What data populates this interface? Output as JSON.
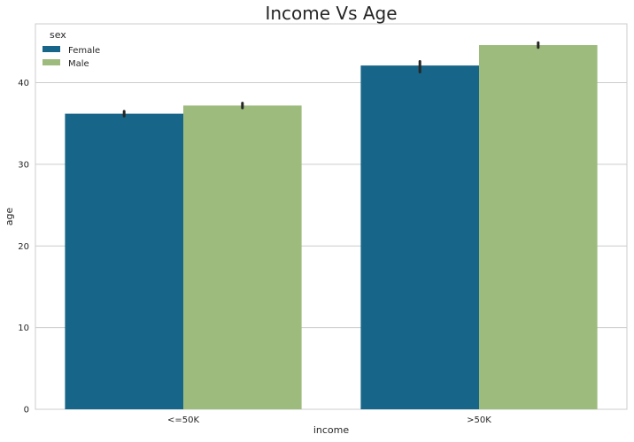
{
  "chart_data": {
    "type": "bar",
    "title": "Income Vs Age",
    "xlabel": "income",
    "ylabel": "age",
    "categories": [
      "<=50K",
      ">50K"
    ],
    "ylim": [
      0,
      47.2
    ],
    "yticks": [
      0,
      10,
      20,
      30,
      40
    ],
    "grid": true,
    "legend": {
      "title": "sex",
      "placement": "top-left"
    },
    "series": [
      {
        "name": "Female",
        "color": "#176689",
        "values": [
          36.2,
          42.1
        ],
        "error_low": [
          35.9,
          41.3
        ],
        "error_high": [
          36.5,
          42.6
        ]
      },
      {
        "name": "Male",
        "color": "#9dbb7c",
        "values": [
          37.2,
          44.6
        ],
        "error_low": [
          36.9,
          44.3
        ],
        "error_high": [
          37.5,
          44.9
        ]
      }
    ],
    "error_color": "#262626"
  }
}
